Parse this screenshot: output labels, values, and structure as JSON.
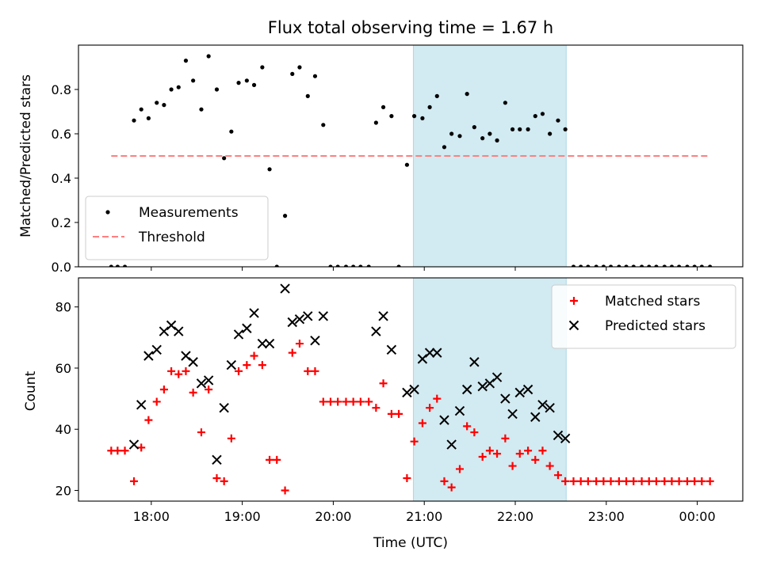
{
  "chart_data": {
    "title": "Flux total observing time = 1.67 h",
    "xlabel": "Time (UTC)",
    "x_unit": "hours (UTC, continuing past midnight)",
    "xlim": [
      17.2,
      24.5
    ],
    "x_ticks": [
      {
        "value": 18,
        "label": "18:00"
      },
      {
        "value": 19,
        "label": "19:00"
      },
      {
        "value": 20,
        "label": "20:00"
      },
      {
        "value": 21,
        "label": "21:00"
      },
      {
        "value": 22,
        "label": "22:00"
      },
      {
        "value": 23,
        "label": "23:00"
      },
      {
        "value": 24,
        "label": "00:00"
      }
    ],
    "highlight_span": {
      "x0": 20.88,
      "x1": 22.56,
      "color": "#add8e6"
    },
    "panels": [
      {
        "type": "scatter",
        "ylabel": "Matched/Predicted stars",
        "ylim": [
          0,
          1.0
        ],
        "y_ticks": [
          0.0,
          0.2,
          0.4,
          0.6,
          0.8
        ],
        "y_tick_labels": [
          "0.0",
          "0.2",
          "0.4",
          "0.6",
          "0.8"
        ],
        "legend_position": "lower-left",
        "series": [
          {
            "name": "Measurements",
            "marker": "dot",
            "color": "#000000",
            "points": [
              [
                17.56,
                0.0
              ],
              [
                17.63,
                0.0
              ],
              [
                17.71,
                0.0
              ],
              [
                17.81,
                0.66
              ],
              [
                17.89,
                0.71
              ],
              [
                17.97,
                0.67
              ],
              [
                18.06,
                0.74
              ],
              [
                18.14,
                0.73
              ],
              [
                18.22,
                0.8
              ],
              [
                18.3,
                0.81
              ],
              [
                18.38,
                0.93
              ],
              [
                18.46,
                0.84
              ],
              [
                18.55,
                0.71
              ],
              [
                18.63,
                0.95
              ],
              [
                18.72,
                0.8
              ],
              [
                18.8,
                0.49
              ],
              [
                18.88,
                0.61
              ],
              [
                18.96,
                0.83
              ],
              [
                19.05,
                0.84
              ],
              [
                19.13,
                0.82
              ],
              [
                19.22,
                0.9
              ],
              [
                19.3,
                0.44
              ],
              [
                19.38,
                0.0
              ],
              [
                19.47,
                0.23
              ],
              [
                19.55,
                0.87
              ],
              [
                19.63,
                0.9
              ],
              [
                19.72,
                0.77
              ],
              [
                19.8,
                0.86
              ],
              [
                19.89,
                0.64
              ],
              [
                19.97,
                0.0
              ],
              [
                20.05,
                0.0
              ],
              [
                20.14,
                0.0
              ],
              [
                20.22,
                0.0
              ],
              [
                20.3,
                0.0
              ],
              [
                20.39,
                0.0
              ],
              [
                20.47,
                0.65
              ],
              [
                20.55,
                0.72
              ],
              [
                20.64,
                0.68
              ],
              [
                20.72,
                0.0
              ],
              [
                20.81,
                0.46
              ],
              [
                20.89,
                0.68
              ],
              [
                20.98,
                0.67
              ],
              [
                21.06,
                0.72
              ],
              [
                21.14,
                0.77
              ],
              [
                21.22,
                0.54
              ],
              [
                21.3,
                0.6
              ],
              [
                21.39,
                0.59
              ],
              [
                21.47,
                0.78
              ],
              [
                21.55,
                0.63
              ],
              [
                21.64,
                0.58
              ],
              [
                21.72,
                0.6
              ],
              [
                21.8,
                0.57
              ],
              [
                21.89,
                0.74
              ],
              [
                21.97,
                0.62
              ],
              [
                22.05,
                0.62
              ],
              [
                22.14,
                0.62
              ],
              [
                22.22,
                0.68
              ],
              [
                22.3,
                0.69
              ],
              [
                22.38,
                0.6
              ],
              [
                22.47,
                0.66
              ],
              [
                22.55,
                0.62
              ],
              [
                22.64,
                0.0
              ],
              [
                22.72,
                0.0
              ],
              [
                22.8,
                0.0
              ],
              [
                22.89,
                0.0
              ],
              [
                22.97,
                0.0
              ],
              [
                23.05,
                0.0
              ],
              [
                23.14,
                0.0
              ],
              [
                23.22,
                0.0
              ],
              [
                23.3,
                0.0
              ],
              [
                23.39,
                0.0
              ],
              [
                23.47,
                0.0
              ],
              [
                23.55,
                0.0
              ],
              [
                23.64,
                0.0
              ],
              [
                23.72,
                0.0
              ],
              [
                23.8,
                0.0
              ],
              [
                23.89,
                0.0
              ],
              [
                23.97,
                0.0
              ],
              [
                24.05,
                0.0
              ],
              [
                24.14,
                0.0
              ]
            ]
          },
          {
            "name": "Threshold",
            "marker": "dashed-line",
            "color": "#ff7f7f",
            "points": [
              [
                17.56,
                0.5
              ],
              [
                24.14,
                0.5
              ]
            ]
          }
        ]
      },
      {
        "type": "scatter",
        "ylabel": "Count",
        "ylim": [
          16.5,
          89.5
        ],
        "y_ticks": [
          20,
          40,
          60,
          80
        ],
        "y_tick_labels": [
          "20",
          "40",
          "60",
          "80"
        ],
        "legend_position": "top-right",
        "series": [
          {
            "name": "Matched stars",
            "marker": "plus",
            "color": "#ff0000",
            "points": [
              [
                17.56,
                33
              ],
              [
                17.63,
                33
              ],
              [
                17.71,
                33
              ],
              [
                17.81,
                23
              ],
              [
                17.89,
                34
              ],
              [
                17.97,
                43
              ],
              [
                18.06,
                49
              ],
              [
                18.14,
                53
              ],
              [
                18.22,
                59
              ],
              [
                18.3,
                58
              ],
              [
                18.38,
                59
              ],
              [
                18.46,
                52
              ],
              [
                18.55,
                39
              ],
              [
                18.63,
                53
              ],
              [
                18.72,
                24
              ],
              [
                18.8,
                23
              ],
              [
                18.88,
                37
              ],
              [
                18.96,
                59
              ],
              [
                19.05,
                61
              ],
              [
                19.13,
                64
              ],
              [
                19.22,
                61
              ],
              [
                19.3,
                30
              ],
              [
                19.38,
                30
              ],
              [
                19.47,
                20
              ],
              [
                19.55,
                65
              ],
              [
                19.63,
                68
              ],
              [
                19.72,
                59
              ],
              [
                19.8,
                59
              ],
              [
                19.89,
                49
              ],
              [
                19.97,
                49
              ],
              [
                20.05,
                49
              ],
              [
                20.14,
                49
              ],
              [
                20.22,
                49
              ],
              [
                20.3,
                49
              ],
              [
                20.39,
                49
              ],
              [
                20.47,
                47
              ],
              [
                20.55,
                55
              ],
              [
                20.64,
                45
              ],
              [
                20.72,
                45
              ],
              [
                20.81,
                24
              ],
              [
                20.89,
                36
              ],
              [
                20.98,
                42
              ],
              [
                21.06,
                47
              ],
              [
                21.14,
                50
              ],
              [
                21.22,
                23
              ],
              [
                21.3,
                21
              ],
              [
                21.39,
                27
              ],
              [
                21.47,
                41
              ],
              [
                21.55,
                39
              ],
              [
                21.64,
                31
              ],
              [
                21.72,
                33
              ],
              [
                21.8,
                32
              ],
              [
                21.89,
                37
              ],
              [
                21.97,
                28
              ],
              [
                22.05,
                32
              ],
              [
                22.14,
                33
              ],
              [
                22.22,
                30
              ],
              [
                22.3,
                33
              ],
              [
                22.38,
                28
              ],
              [
                22.47,
                25
              ],
              [
                22.55,
                23
              ],
              [
                22.64,
                23
              ],
              [
                22.72,
                23
              ],
              [
                22.8,
                23
              ],
              [
                22.89,
                23
              ],
              [
                22.97,
                23
              ],
              [
                23.05,
                23
              ],
              [
                23.14,
                23
              ],
              [
                23.22,
                23
              ],
              [
                23.3,
                23
              ],
              [
                23.39,
                23
              ],
              [
                23.47,
                23
              ],
              [
                23.55,
                23
              ],
              [
                23.64,
                23
              ],
              [
                23.72,
                23
              ],
              [
                23.8,
                23
              ],
              [
                23.89,
                23
              ],
              [
                23.97,
                23
              ],
              [
                24.05,
                23
              ],
              [
                24.14,
                23
              ]
            ]
          },
          {
            "name": "Predicted stars",
            "marker": "x",
            "color": "#000000",
            "points": [
              [
                17.81,
                35
              ],
              [
                17.89,
                48
              ],
              [
                17.97,
                64
              ],
              [
                18.06,
                66
              ],
              [
                18.14,
                72
              ],
              [
                18.22,
                74
              ],
              [
                18.3,
                72
              ],
              [
                18.38,
                64
              ],
              [
                18.46,
                62
              ],
              [
                18.55,
                55
              ],
              [
                18.63,
                56
              ],
              [
                18.72,
                30
              ],
              [
                18.8,
                47
              ],
              [
                18.88,
                61
              ],
              [
                18.96,
                71
              ],
              [
                19.05,
                73
              ],
              [
                19.13,
                78
              ],
              [
                19.22,
                68
              ],
              [
                19.3,
                68
              ],
              [
                19.47,
                86
              ],
              [
                19.55,
                75
              ],
              [
                19.63,
                76
              ],
              [
                19.72,
                77
              ],
              [
                19.8,
                69
              ],
              [
                19.89,
                77
              ],
              [
                20.47,
                72
              ],
              [
                20.55,
                77
              ],
              [
                20.64,
                66
              ],
              [
                20.81,
                52
              ],
              [
                20.89,
                53
              ],
              [
                20.98,
                63
              ],
              [
                21.06,
                65
              ],
              [
                21.14,
                65
              ],
              [
                21.22,
                43
              ],
              [
                21.3,
                35
              ],
              [
                21.39,
                46
              ],
              [
                21.47,
                53
              ],
              [
                21.55,
                62
              ],
              [
                21.64,
                54
              ],
              [
                21.72,
                55
              ],
              [
                21.8,
                57
              ],
              [
                21.89,
                50
              ],
              [
                21.97,
                45
              ],
              [
                22.05,
                52
              ],
              [
                22.14,
                53
              ],
              [
                22.22,
                44
              ],
              [
                22.3,
                48
              ],
              [
                22.38,
                47
              ],
              [
                22.47,
                38
              ],
              [
                22.55,
                37
              ]
            ]
          }
        ]
      }
    ]
  }
}
